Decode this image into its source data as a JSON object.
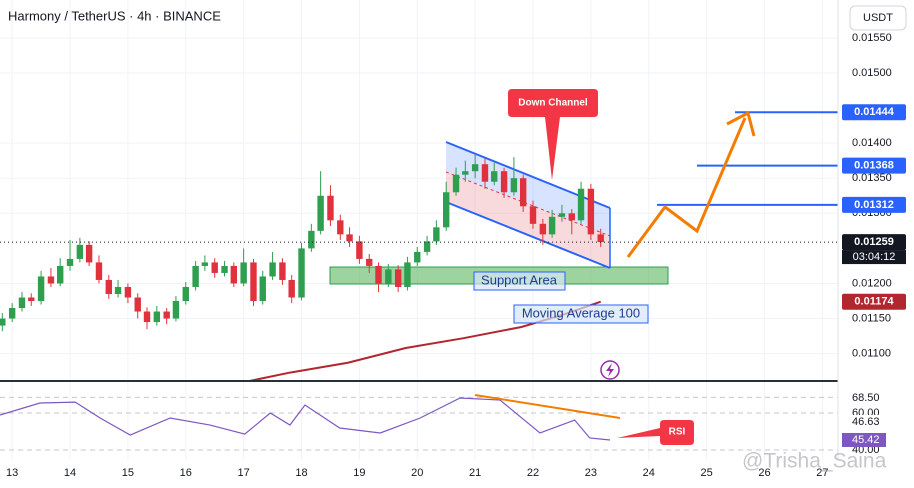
{
  "header": {
    "title": "Harmony / TetherUS · 4h · BINANCE",
    "currency": "USDT",
    "countdown": "03:04:12",
    "watermark": "@Trisha_Saina"
  },
  "chart_data": [
    {
      "type": "candlestick",
      "up_color": "#2e9e4f",
      "down_color": "#e0323c",
      "xlim": [
        12.79,
        27.27
      ],
      "ylim": [
        0.01061,
        0.01604
      ],
      "xticks": [
        13,
        14,
        15,
        16,
        17,
        18,
        19,
        20,
        21,
        22,
        23,
        24,
        25,
        26,
        27
      ],
      "yticks": [
        {
          "value": 0.0155,
          "label": "0.01550"
        },
        {
          "value": 0.015,
          "label": "0.01500"
        },
        {
          "value": 0.014,
          "label": "0.01400"
        },
        {
          "value": 0.0135,
          "label": "0.01350"
        },
        {
          "value": 0.013,
          "label": "0.01300"
        },
        {
          "value": 0.012,
          "label": "0.01200"
        },
        {
          "value": 0.0115,
          "label": "0.01150"
        },
        {
          "value": 0.011,
          "label": "0.01100"
        }
      ],
      "x": [
        12.83,
        13,
        13.17,
        13.33,
        13.5,
        13.67,
        13.83,
        14,
        14.17,
        14.33,
        14.5,
        14.67,
        14.83,
        15,
        15.17,
        15.33,
        15.5,
        15.67,
        15.83,
        16,
        16.17,
        16.33,
        16.5,
        16.67,
        16.83,
        17,
        17.17,
        17.33,
        17.5,
        17.67,
        17.83,
        18,
        18.17,
        18.33,
        18.5,
        18.67,
        18.83,
        19,
        19.17,
        19.33,
        19.5,
        19.67,
        19.83,
        20,
        20.17,
        20.33,
        20.5,
        20.67,
        20.83,
        21,
        21.17,
        21.33,
        21.5,
        21.67,
        21.83,
        22,
        22.17,
        22.33,
        22.5,
        22.67,
        22.83,
        23,
        23.17
      ],
      "ohlc": [
        [
          0.0114,
          0.01158,
          0.01132,
          0.0115
        ],
        [
          0.0115,
          0.01172,
          0.01145,
          0.01165
        ],
        [
          0.01165,
          0.01188,
          0.0116,
          0.0118
        ],
        [
          0.0118,
          0.01186,
          0.01168,
          0.01175
        ],
        [
          0.01175,
          0.01218,
          0.0117,
          0.0121
        ],
        [
          0.0121,
          0.01222,
          0.01195,
          0.012
        ],
        [
          0.012,
          0.01236,
          0.01196,
          0.01225
        ],
        [
          0.01225,
          0.01262,
          0.01218,
          0.01235
        ],
        [
          0.01235,
          0.01265,
          0.0123,
          0.01255
        ],
        [
          0.01255,
          0.0126,
          0.01225,
          0.0123
        ],
        [
          0.0123,
          0.0124,
          0.012,
          0.01205
        ],
        [
          0.01205,
          0.01212,
          0.01178,
          0.01185
        ],
        [
          0.01185,
          0.01205,
          0.0118,
          0.01195
        ],
        [
          0.01195,
          0.012,
          0.01172,
          0.0118
        ],
        [
          0.0118,
          0.01186,
          0.0115,
          0.0116
        ],
        [
          0.0116,
          0.01166,
          0.01135,
          0.01145
        ],
        [
          0.01145,
          0.01168,
          0.0114,
          0.0116
        ],
        [
          0.0116,
          0.01165,
          0.01142,
          0.0115
        ],
        [
          0.0115,
          0.01182,
          0.01146,
          0.01175
        ],
        [
          0.01175,
          0.01202,
          0.0117,
          0.01195
        ],
        [
          0.01195,
          0.01232,
          0.0119,
          0.01225
        ],
        [
          0.01225,
          0.0124,
          0.01218,
          0.0123
        ],
        [
          0.0123,
          0.01236,
          0.01208,
          0.01215
        ],
        [
          0.01215,
          0.01232,
          0.0121,
          0.01225
        ],
        [
          0.01225,
          0.0123,
          0.01195,
          0.012
        ],
        [
          0.012,
          0.0125,
          0.01196,
          0.0123
        ],
        [
          0.0123,
          0.01235,
          0.01168,
          0.01175
        ],
        [
          0.01175,
          0.01218,
          0.0117,
          0.0121
        ],
        [
          0.0121,
          0.01245,
          0.01205,
          0.0123
        ],
        [
          0.0123,
          0.01236,
          0.01198,
          0.01205
        ],
        [
          0.01205,
          0.01212,
          0.01172,
          0.0118
        ],
        [
          0.0118,
          0.01258,
          0.01176,
          0.0125
        ],
        [
          0.0125,
          0.01285,
          0.01245,
          0.01275
        ],
        [
          0.01275,
          0.0136,
          0.0127,
          0.01325
        ],
        [
          0.01325,
          0.0134,
          0.01282,
          0.0129
        ],
        [
          0.0129,
          0.01298,
          0.01262,
          0.0127
        ],
        [
          0.0127,
          0.0128,
          0.01252,
          0.0126
        ],
        [
          0.0126,
          0.01268,
          0.01228,
          0.01235
        ],
        [
          0.01235,
          0.01242,
          0.01215,
          0.01225
        ],
        [
          0.01225,
          0.0123,
          0.01188,
          0.012
        ],
        [
          0.012,
          0.01228,
          0.01195,
          0.0122
        ],
        [
          0.0122,
          0.01226,
          0.01188,
          0.01195
        ],
        [
          0.01195,
          0.01238,
          0.0119,
          0.0123
        ],
        [
          0.0123,
          0.01252,
          0.01225,
          0.01245
        ],
        [
          0.01245,
          0.01268,
          0.0124,
          0.0126
        ],
        [
          0.0126,
          0.0129,
          0.01255,
          0.0128
        ],
        [
          0.0128,
          0.01345,
          0.01275,
          0.0133
        ],
        [
          0.0133,
          0.01365,
          0.01325,
          0.01355
        ],
        [
          0.01355,
          0.01375,
          0.01345,
          0.0136
        ],
        [
          0.0136,
          0.01385,
          0.0135,
          0.0137
        ],
        [
          0.0137,
          0.01378,
          0.01335,
          0.01345
        ],
        [
          0.01345,
          0.01372,
          0.0134,
          0.0136
        ],
        [
          0.0136,
          0.01365,
          0.01322,
          0.0133
        ],
        [
          0.0133,
          0.0138,
          0.01325,
          0.0135
        ],
        [
          0.0135,
          0.01355,
          0.01302,
          0.0131
        ],
        [
          0.0131,
          0.01318,
          0.01278,
          0.01285
        ],
        [
          0.01285,
          0.01292,
          0.01255,
          0.0127
        ],
        [
          0.0127,
          0.01305,
          0.01265,
          0.01295
        ],
        [
          0.01295,
          0.01312,
          0.01288,
          0.013
        ],
        [
          0.013,
          0.01306,
          0.0127,
          0.0129
        ],
        [
          0.0129,
          0.01345,
          0.01285,
          0.01335
        ],
        [
          0.01335,
          0.01342,
          0.01262,
          0.0127
        ],
        [
          0.0127,
          0.01278,
          0.01252,
          0.01259
        ]
      ],
      "series": [
        {
          "name": "Moving Average 100",
          "color": "#b2262e",
          "x": [
            17.1,
            17.8,
            18.8,
            19.8,
            20.8,
            21.8,
            22.5,
            23.17
          ],
          "values": [
            0.01061,
            0.01073,
            0.01087,
            0.01108,
            0.01122,
            0.01138,
            0.01155,
            0.01174
          ]
        }
      ],
      "price_lines": [
        {
          "value": 0.01444,
          "color": "#2962ff"
        },
        {
          "value": 0.01368,
          "color": "#2962ff"
        },
        {
          "value": 0.01312,
          "color": "#2962ff"
        }
      ],
      "annotations": [
        "Down Channel",
        "Support Area"
      ]
    },
    {
      "type": "line",
      "xlim": [
        12.79,
        27.27
      ],
      "ylim": [
        34.6,
        77.3
      ],
      "yticks": [
        {
          "value": 68.5,
          "label": "68.50"
        },
        {
          "value": 60,
          "label": "60.00"
        },
        {
          "value": 40,
          "label": "40.00"
        }
      ],
      "ma_value": 46.63,
      "series": [
        {
          "name": "RSI",
          "color": "#7e57c2",
          "x": [
            12.79,
            13.48,
            14.09,
            14.52,
            15.04,
            15.73,
            16.42,
            17.02,
            17.46,
            17.8,
            18.06,
            18.66,
            19.36,
            20.05,
            20.74,
            21.43,
            22.12,
            22.72,
            22.98,
            23.33
          ],
          "values": [
            58.9,
            65.4,
            65.9,
            57.3,
            48.1,
            57.3,
            53.5,
            48.6,
            60,
            53.5,
            64.3,
            51.9,
            49.2,
            57.3,
            68.1,
            67,
            49.2,
            56.2,
            46.5,
            45.42
          ]
        }
      ]
    }
  ]
}
